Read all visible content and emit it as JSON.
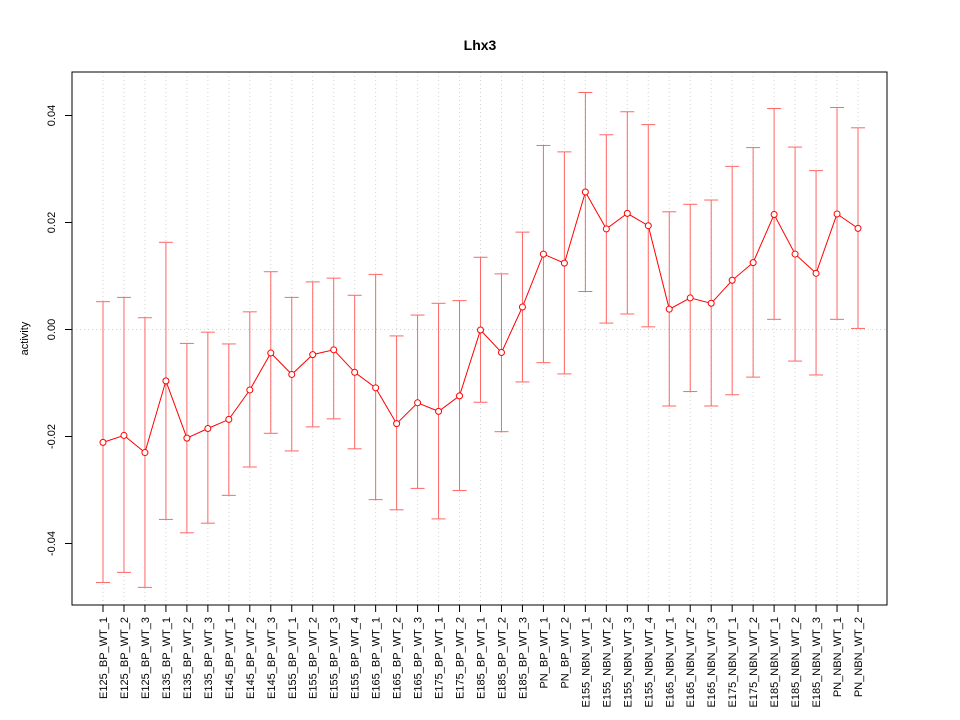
{
  "chart_data": {
    "type": "line",
    "title": "Lhx3",
    "xlabel": "",
    "ylabel": "activity",
    "ylim": [
      -0.052,
      0.048
    ],
    "yticks": [
      -0.04,
      -0.02,
      0.0,
      0.02,
      0.04
    ],
    "ytick_labels": [
      "-0.04",
      "-0.02",
      "0.00",
      "0.02",
      "0.04"
    ],
    "grid": true,
    "line_color": "#ff0000",
    "errorbar_color": "#ff6666",
    "grid_color": "#d3d3d3",
    "categories": [
      "E125_BP_WT_1",
      "E125_BP_WT_2",
      "E125_BP_WT_3",
      "E135_BP_WT_1",
      "E135_BP_WT_2",
      "E135_BP_WT_3",
      "E145_BP_WT_1",
      "E145_BP_WT_2",
      "E145_BP_WT_3",
      "E155_BP_WT_1",
      "E155_BP_WT_2",
      "E155_BP_WT_3",
      "E155_BP_WT_4",
      "E165_BP_WT_1",
      "E165_BP_WT_2",
      "E165_BP_WT_3",
      "E175_BP_WT_1",
      "E175_BP_WT_2",
      "E185_BP_WT_1",
      "E185_BP_WT_2",
      "E185_BP_WT_3",
      "PN_BP_WT_1",
      "PN_BP_WT_2",
      "E155_NBN_WT_1",
      "E155_NBN_WT_2",
      "E155_NBN_WT_3",
      "E155_NBN_WT_4",
      "E165_NBN_WT_1",
      "E165_NBN_WT_2",
      "E165_NBN_WT_3",
      "E175_NBN_WT_1",
      "E175_NBN_WT_2",
      "E185_NBN_WT_1",
      "E185_NBN_WT_2",
      "E185_NBN_WT_3",
      "PN_NBN_WT_1",
      "PN_NBN_WT_2"
    ],
    "values": [
      -0.0211,
      -0.0198,
      -0.023,
      -0.0096,
      -0.0203,
      -0.0185,
      -0.0168,
      -0.0113,
      -0.0044,
      -0.0084,
      -0.0047,
      -0.0038,
      -0.008,
      -0.0109,
      -0.0176,
      -0.0137,
      -0.0153,
      -0.0124,
      -0.0001,
      -0.0043,
      0.0042,
      0.0141,
      0.0124,
      0.0257,
      0.0188,
      0.0217,
      0.0194,
      0.0038,
      0.0059,
      0.0049,
      0.0092,
      0.0125,
      0.0215,
      0.0141,
      0.0105,
      0.0216,
      0.0189
    ],
    "upper": [
      0.0052,
      0.006,
      0.0022,
      0.0163,
      -0.0026,
      -0.0005,
      -0.0027,
      0.0033,
      0.0108,
      0.006,
      0.0089,
      0.0096,
      0.0064,
      0.0103,
      -0.0012,
      0.0027,
      0.0049,
      0.0054,
      0.0135,
      0.0104,
      0.0182,
      0.0344,
      0.0332,
      0.0443,
      0.0364,
      0.0407,
      0.0383,
      0.022,
      0.0234,
      0.0242,
      0.0305,
      0.034,
      0.0413,
      0.0341,
      0.0297,
      0.0415,
      0.0377
    ],
    "lower": [
      -0.0473,
      -0.0454,
      -0.0482,
      -0.0355,
      -0.038,
      -0.0362,
      -0.031,
      -0.0257,
      -0.0194,
      -0.0227,
      -0.0182,
      -0.0167,
      -0.0223,
      -0.0318,
      -0.0337,
      -0.0297,
      -0.0354,
      -0.0301,
      -0.0136,
      -0.0191,
      -0.0098,
      -0.0062,
      -0.0083,
      0.0071,
      0.0012,
      0.0029,
      0.0005,
      -0.0143,
      -0.0116,
      -0.0143,
      -0.0122,
      -0.0089,
      0.0019,
      -0.0059,
      -0.0085,
      0.0019,
      0.0002
    ]
  }
}
